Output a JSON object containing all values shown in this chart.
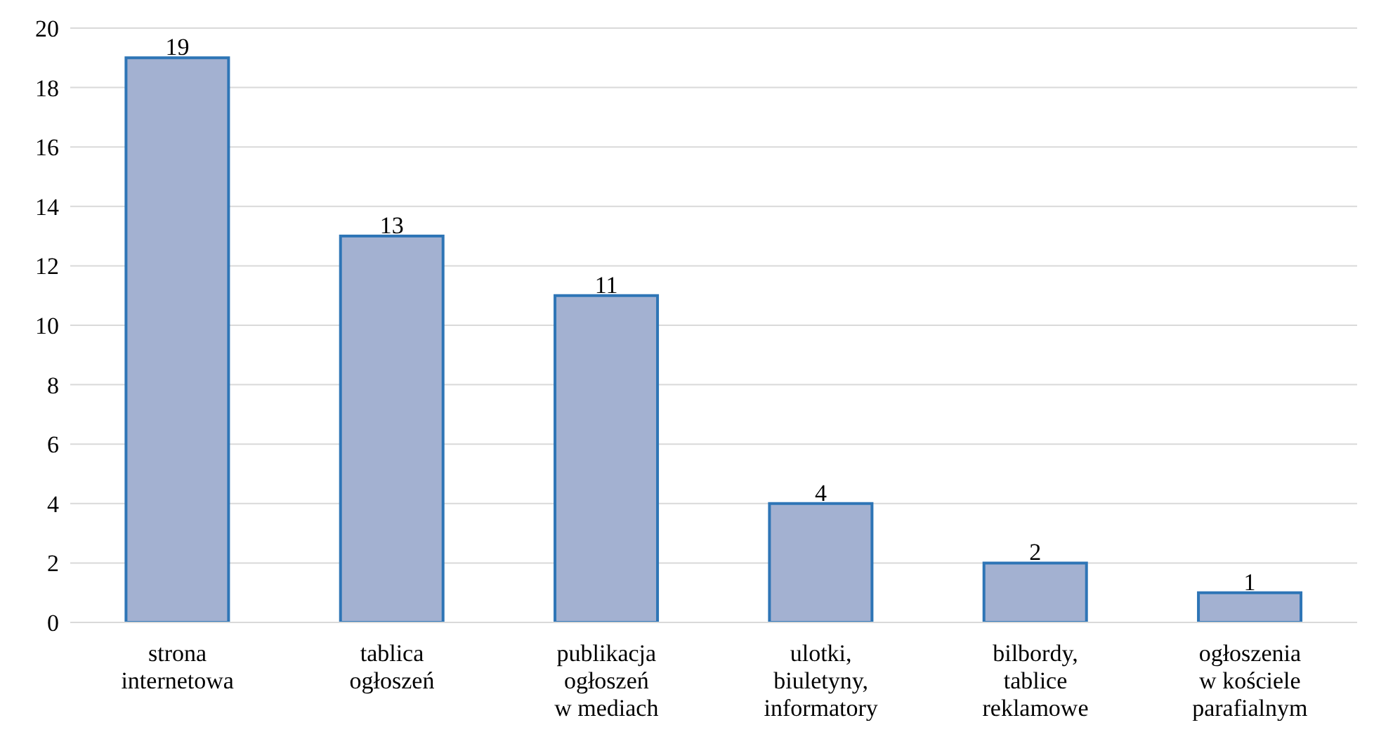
{
  "chart_data": {
    "type": "bar",
    "categories": [
      "strona internetowa",
      "tablica ogłoszeń",
      "publikacja ogłoszeń w mediach",
      "ulotki, biuletyny, informatory",
      "bilbordy, tablice reklamowe",
      "ogłoszenia w kościele parafialnym"
    ],
    "values": [
      19,
      13,
      11,
      4,
      2,
      1
    ],
    "color": "#a3b1d1",
    "ylim": [
      0,
      20
    ],
    "yticks": [
      0,
      2,
      4,
      6,
      8,
      10,
      12,
      14,
      16,
      18,
      20
    ],
    "grid": "y",
    "data_labels": true
  }
}
